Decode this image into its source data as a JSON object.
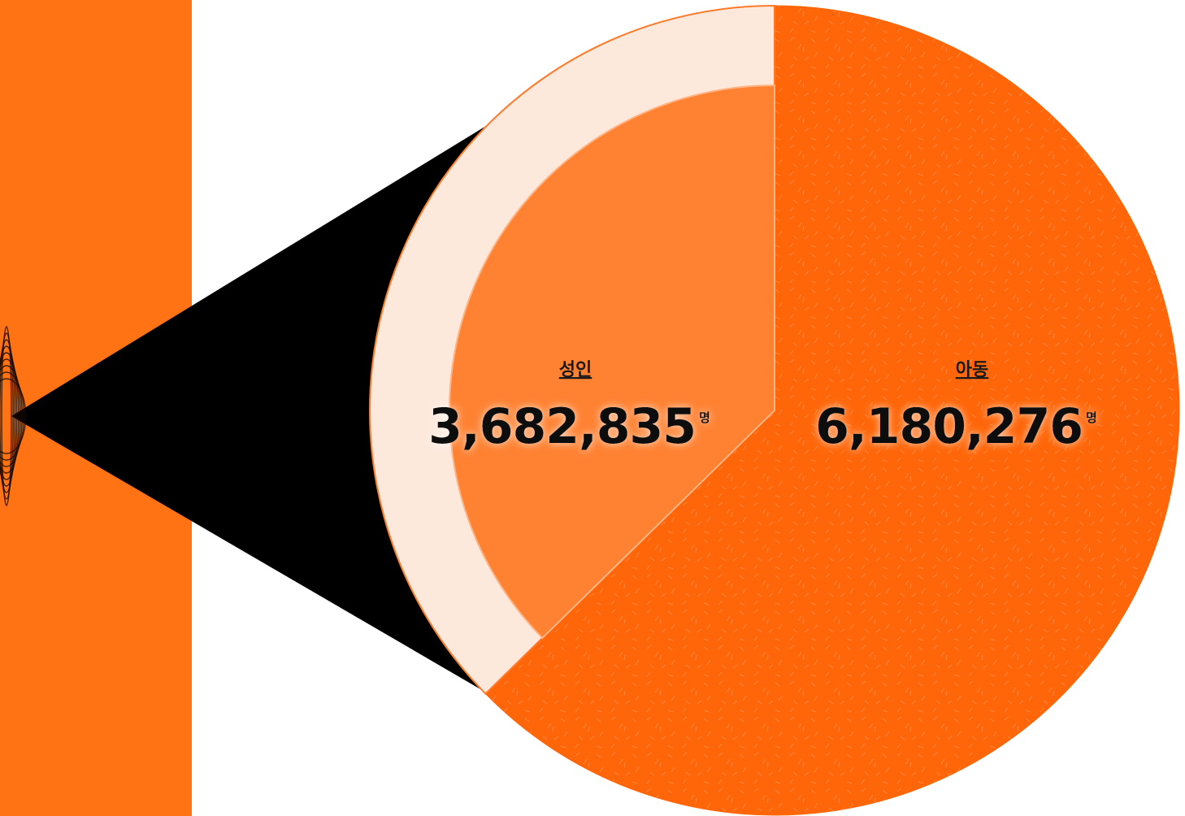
{
  "chart_data": {
    "type": "pie",
    "categories": [
      "성인",
      "아동"
    ],
    "values": [
      3682835,
      6180276
    ],
    "value_labels": [
      "3,682,835",
      "6,180,276"
    ],
    "unit": "명",
    "colors": {
      "adult_slice": "#ff8233",
      "adult_ring": "#fde8dc",
      "child_slice": "#ff6609",
      "left_bar": "#ff7315",
      "wedge": "#000000"
    },
    "title": "",
    "legend": "none"
  }
}
